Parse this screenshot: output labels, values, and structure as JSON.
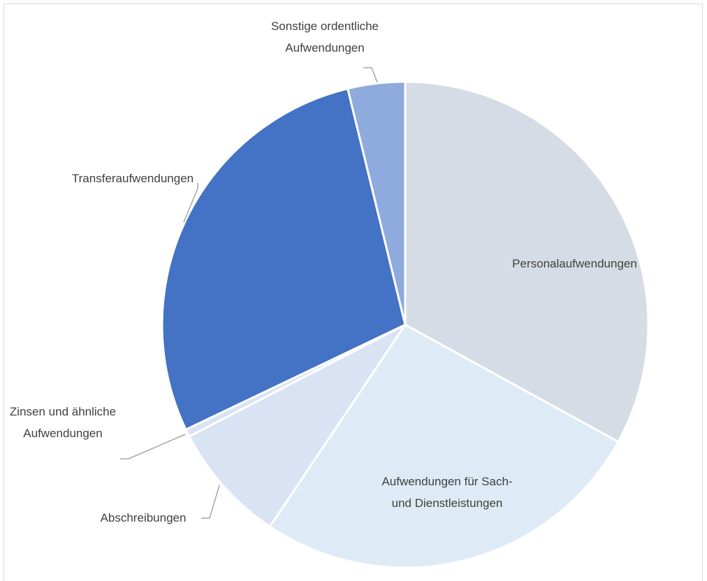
{
  "chart_data": {
    "type": "pie",
    "categories": [
      "Personalaufwendungen",
      "Aufwendungen für Sach- und Dienstleistungen",
      "Abschreibungen",
      "Zinsen und ähnliche Aufwendungen",
      "Transferaufwendungen",
      "Sonstige ordentliche Aufwendungen"
    ],
    "values": [
      33,
      26.4,
      8,
      0.5,
      28.3,
      3.8
    ],
    "colors": [
      "#d6dce5",
      "#deebf7",
      "#dae3f3",
      "#dae3f3",
      "#4472c4",
      "#8faadc"
    ]
  }
}
